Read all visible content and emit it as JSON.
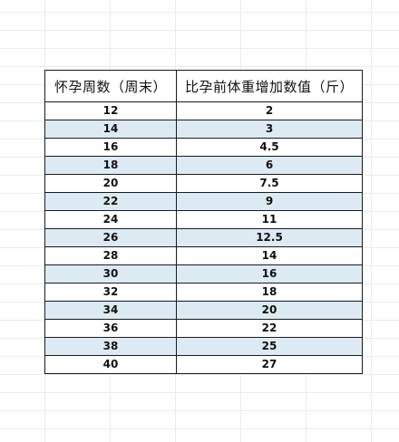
{
  "table": {
    "headers": [
      "怀孕周数（周末）",
      "比孕前体重增加数值（斤）"
    ],
    "rows": [
      [
        "12",
        "2"
      ],
      [
        "14",
        "3"
      ],
      [
        "16",
        "4.5"
      ],
      [
        "18",
        "6"
      ],
      [
        "20",
        "7.5"
      ],
      [
        "22",
        "9"
      ],
      [
        "24",
        "11"
      ],
      [
        "26",
        "12.5"
      ],
      [
        "28",
        "14"
      ],
      [
        "30",
        "16"
      ],
      [
        "32",
        "18"
      ],
      [
        "34",
        "20"
      ],
      [
        "36",
        "22"
      ],
      [
        "38",
        "25"
      ],
      [
        "40",
        "27"
      ]
    ],
    "stripe_color": "#dcebf3",
    "border_color": "#1a1a1a"
  }
}
